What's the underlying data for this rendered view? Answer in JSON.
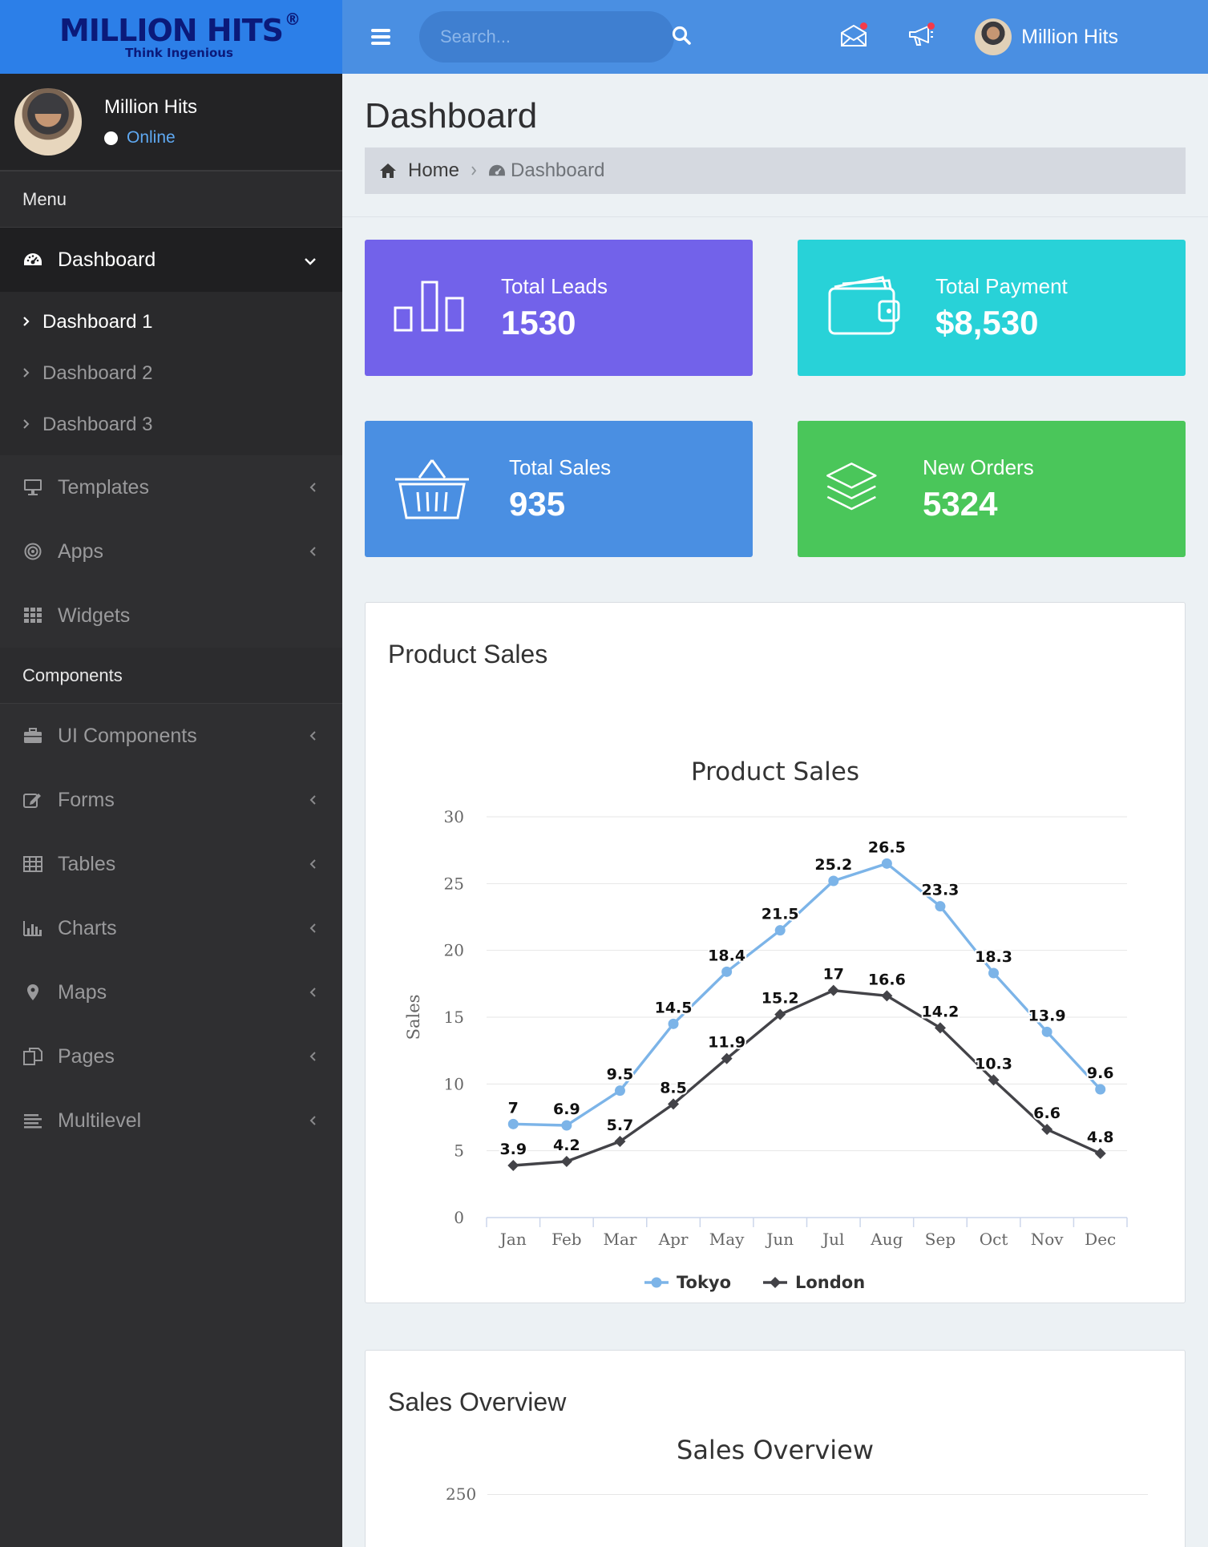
{
  "brand": {
    "name": "MILLION HITS",
    "reg": "®",
    "tagline": "Think Ingenious"
  },
  "user": {
    "name": "Million Hits",
    "status": "Online"
  },
  "search": {
    "placeholder": "Search..."
  },
  "sidebar": {
    "menu_header": "Menu",
    "dashboard": {
      "label": "Dashboard",
      "icon": "dashboard-icon"
    },
    "submenu": [
      "Dashboard 1",
      "Dashboard 2",
      "Dashboard 3"
    ],
    "items_a": [
      {
        "label": "Templates",
        "icon": "monitor-icon"
      },
      {
        "label": "Apps",
        "icon": "target-icon"
      },
      {
        "label": "Widgets",
        "icon": "grid-icon"
      }
    ],
    "components_header": "Components",
    "items_b": [
      {
        "label": "UI Components",
        "icon": "briefcase-icon"
      },
      {
        "label": "Forms",
        "icon": "edit-icon"
      },
      {
        "label": "Tables",
        "icon": "table-icon"
      },
      {
        "label": "Charts",
        "icon": "bar-chart-icon"
      },
      {
        "label": "Maps",
        "icon": "map-pin-icon"
      },
      {
        "label": "Pages",
        "icon": "pages-icon"
      },
      {
        "label": "Multilevel",
        "icon": "list-icon"
      }
    ]
  },
  "page": {
    "title": "Dashboard",
    "breadcrumb": [
      "Home",
      "Dashboard"
    ]
  },
  "stats": [
    {
      "label": "Total Leads",
      "value": "1530",
      "color": "#7262ea",
      "icon": "bar-chart-icon"
    },
    {
      "label": "Total Payment",
      "value": "$8,530",
      "color": "#28d2d8",
      "icon": "wallet-icon"
    },
    {
      "label": "Total Sales",
      "value": "935",
      "color": "#4a8fe2",
      "icon": "basket-icon"
    },
    {
      "label": "New Orders",
      "value": "5324",
      "color": "#4ac65a",
      "icon": "layers-icon"
    }
  ],
  "panels": {
    "product_sales": "Product Sales",
    "sales_overview": "Sales Overview",
    "sales_overview_chart_title": "Sales Overview",
    "sales_overview_top_tick": "250"
  },
  "chart_data": {
    "type": "line",
    "title": "Product Sales",
    "ylabel": "Sales",
    "xlabel": "",
    "categories": [
      "Jan",
      "Feb",
      "Mar",
      "Apr",
      "May",
      "Jun",
      "Jul",
      "Aug",
      "Sep",
      "Oct",
      "Nov",
      "Dec"
    ],
    "ylim": [
      0,
      30
    ],
    "yticks": [
      0,
      5,
      10,
      15,
      20,
      25,
      30
    ],
    "grid": true,
    "legend": "bottom-center",
    "series": [
      {
        "name": "Tokyo",
        "color": "#7cb4e8",
        "marker": "circle",
        "values": [
          7,
          6.9,
          9.5,
          14.5,
          18.4,
          21.5,
          25.2,
          26.5,
          23.3,
          18.3,
          13.9,
          9.6
        ]
      },
      {
        "name": "London",
        "color": "#434348",
        "marker": "diamond",
        "values": [
          3.9,
          4.2,
          5.7,
          8.5,
          11.9,
          15.2,
          17,
          16.6,
          14.2,
          10.3,
          6.6,
          4.8
        ]
      }
    ]
  }
}
